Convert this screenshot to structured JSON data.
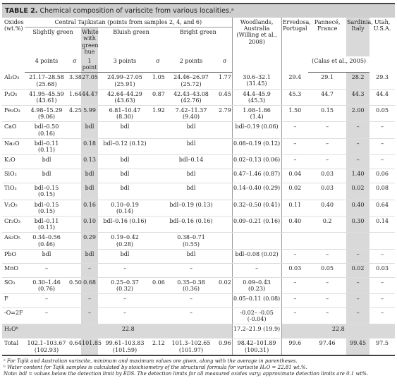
{
  "header": {
    "label": "TABLE 2.",
    "title": "Chemical composition of variscite from various localities.ᵃ"
  },
  "columns": {
    "oxides": "Oxides\n(wt.%)",
    "central": "Central Tajikistan (points from samples 2, 4, and 6)",
    "slightly_green": "Slightly green",
    "white": "White\nwith\ngreen\nhue",
    "bluish_green": "Bluish green",
    "bright_green": "Bright green",
    "points": [
      "4 points",
      "1 point",
      "3 points",
      "2 points"
    ],
    "sigma": [
      "σ",
      "σ",
      "σ"
    ],
    "woodlands": "Woodlands,\nAustralia\n(Willing et al.,\n2008)",
    "ervedosa": "Ervedosa,\nPortugal",
    "pannece": "Pannecé,\nFrance",
    "sardinia": "Sardinia,\nItaly",
    "utah": "Utah,\nU.S.A.",
    "calas": "(Calas et al., 2005)"
  },
  "table": {
    "rows": [
      [
        "Al₂O₃",
        "21.17–28.58\n(25.68)",
        "3.38",
        "27.05",
        "24.99–27.05\n(25.91)",
        "1.05",
        "24.46–26.97\n(25.72)",
        "1.77",
        "30.6–32.1\n(31.45)",
        "29.4",
        "29.1",
        "28.2",
        "29.3"
      ],
      [
        "P₂O₅",
        "41.95–45.59\n(43.61)",
        "1.64",
        "44.47",
        "42.64–44.29\n(43.63)",
        "0.87",
        "42.43–43.08\n(42.76)",
        "0.45",
        "44.4–45.9\n(45.3)",
        "45.3",
        "44.7",
        "44.3",
        "44.4"
      ],
      [
        "Fe₂O₃",
        "4.98–15.29\n(9.06)",
        "4.25",
        "5.99",
        "6.81–10.47\n(8.30)",
        "1.92",
        "7.42–11.37\n(9.40)",
        "2.79",
        "1.08–1.86\n(1.4)",
        "1.50",
        "0.15",
        "2.00",
        "0.05"
      ],
      [
        "CaO",
        "bdl–0.50 (0.16)",
        null,
        "bdl",
        "bdl",
        null,
        "bdl",
        null,
        "bdl–0.19 (0.06)",
        "–",
        "–",
        "–",
        "–"
      ],
      [
        "Na₂O",
        "bdl–0.11 (0.11)",
        null,
        "0.18",
        "bdl–0.12 (0.12)",
        null,
        "bdl",
        null,
        "0.08–0.19 (0.12)",
        "–",
        "–",
        "–",
        "–"
      ],
      [
        "K₂O",
        "bdl",
        null,
        "0.13",
        "bdl",
        null,
        "bdl–0.14",
        null,
        "0.02–0.13 (0.06)",
        "–",
        "–",
        "–",
        "–"
      ],
      [
        "SiO₂",
        "bdl",
        null,
        "bdl",
        "bdl",
        null,
        "bdl",
        null,
        "0.47–1.46 (0.87)",
        "0.04",
        "0.03",
        "1.40",
        "0.06"
      ],
      [
        "TiO₂",
        "bdl–0.15 (0.15)",
        null,
        "bdl",
        "bdl",
        null,
        "bdl",
        null,
        "0.14–0.40 (0.29)",
        "0.02",
        "0.03",
        "0.02",
        "0.08"
      ],
      [
        "V₂O₅",
        "bdl–0.15 (0.15)",
        null,
        "0.16",
        "0.10–0.19\n(0.14)",
        null,
        "bdl–0.19 (0.13)",
        null,
        "0.32–0.50 (0.41)",
        "0.11",
        "0.40",
        "0.40",
        "0.64"
      ],
      [
        "Cr₂O₃",
        "bdl–0.11 (0.11)",
        null,
        "0.10",
        "bdl–0.16 (0.16)",
        null,
        "bdl–0.16 (0.16)",
        null,
        "0.09–0.21 (0.16)",
        "0.40",
        "0.2",
        "0.30",
        "0.14"
      ],
      [
        "As₂O₅",
        "0.34–0.56\n(0.46)",
        null,
        "0.29",
        "0.19–0.42\n(0.28)",
        null,
        "0.38–0.71\n(0.55)",
        null,
        null,
        null,
        null,
        null,
        null
      ],
      [
        "PbO",
        "bdl",
        null,
        "bdl",
        "bdl",
        null,
        "bdl",
        null,
        "bdl–0.08 (0.02)",
        "–",
        "–",
        "–",
        "–"
      ],
      [
        "MnO",
        "–",
        null,
        "–",
        "–",
        null,
        "–",
        null,
        "–",
        "0.03",
        "0.05",
        "0.02",
        "0.03"
      ],
      [
        "SO₃",
        "0.30–1.46\n(0.76)",
        "0.50",
        "0.68",
        "0.25–0.37\n(0.32)",
        "0.06",
        "0.35–0.38\n(0.36)",
        "0.02",
        "0.09–0.43\n(0.23)",
        "–",
        "–",
        "–",
        "–"
      ],
      [
        "F",
        "–",
        null,
        "–",
        "–",
        null,
        "–",
        null,
        "0.05–0.11 (0.08)",
        "–",
        "–",
        "–",
        "–"
      ],
      [
        "-O=2F",
        "–",
        null,
        "–",
        "–",
        null,
        "–",
        null,
        "-0.02– -0.05\n(-0.04)",
        "–",
        "–",
        "–",
        "–"
      ]
    ],
    "water": {
      "oxide": "H₂Oᵇ",
      "tajik": "22.8",
      "woodlands": "17.2–21.9 (19.9)",
      "others": "22.8"
    },
    "total": [
      "Total",
      "102.1–103.67\n(102.93)",
      "0.64",
      "101.85",
      "99.61–103.83\n(101.59)",
      "2.12",
      "101.3–102.65\n(101.97)",
      "0.96",
      "98.42–101.89\n(100.31)",
      "99.6",
      "97.46",
      "99.45",
      "97.5"
    ]
  },
  "footnotes": [
    "ᵃ For Tajik and Australian variscite, minimum and maximum values are given, along with the average in parentheses.",
    "ᵇ Water content for Tajik samples is calculated by stoichiometry of the structural formula for variscite H₂O = 22.81 wt.%.",
    "Note: bdl = values below the detection limit by EDS. The detection limits for all measured oxides vary; approximate detection limits are 0.1 wt%."
  ]
}
